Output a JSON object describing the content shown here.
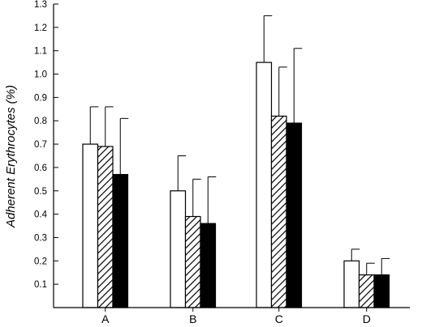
{
  "chart_data": {
    "type": "bar",
    "title": "",
    "xlabel": "",
    "ylabel": "Adherent Erythrocytes  (%)",
    "ylim": [
      0,
      1.3
    ],
    "yticks": [
      "0.1",
      "0.2",
      "0.3",
      "0.4",
      "0.5",
      "0.6",
      "0.7",
      "0.8",
      "0.9",
      "1.0",
      "1.1",
      "1.2",
      "1.3"
    ],
    "categories": [
      "A",
      "B",
      "C",
      "D"
    ],
    "grid": false,
    "legend": "none",
    "series": [
      {
        "fill": "open",
        "values": [
          0.7,
          0.5,
          1.05,
          0.2
        ],
        "error": [
          0.16,
          0.15,
          0.2,
          0.05
        ]
      },
      {
        "fill": "hatched",
        "values": [
          0.69,
          0.39,
          0.82,
          0.14
        ],
        "error": [
          0.17,
          0.16,
          0.21,
          0.05
        ]
      },
      {
        "fill": "solid",
        "values": [
          0.57,
          0.36,
          0.79,
          0.14
        ],
        "error": [
          0.24,
          0.2,
          0.32,
          0.07
        ]
      }
    ]
  }
}
